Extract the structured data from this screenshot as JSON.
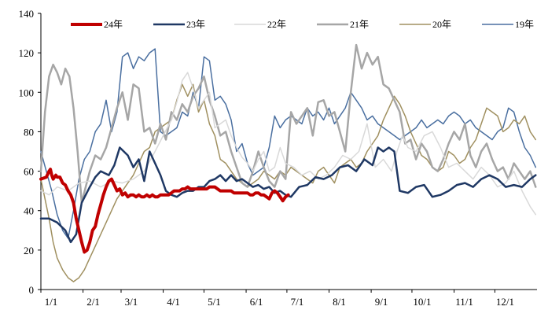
{
  "chart_data": {
    "type": "line",
    "ylim": [
      0,
      140
    ],
    "yticks": [
      "0",
      "20",
      "40",
      "60",
      "80",
      "100",
      "120",
      "140"
    ],
    "xticks": [
      "1/1",
      "2/1",
      "3/1",
      "4/1",
      "5/1",
      "6/1",
      "7/1",
      "8/1",
      "9/1",
      "10/1",
      "11/1",
      "12/1"
    ],
    "legend_placement": "top",
    "grid": false,
    "series": [
      {
        "name": "24年",
        "color": "#c00000",
        "width": 4,
        "x": [
          0,
          4,
          6,
          7,
          8,
          9,
          10,
          11,
          12,
          14,
          16,
          18,
          20,
          22,
          24,
          25,
          26,
          28,
          30,
          32,
          34,
          36,
          38,
          40,
          42,
          44,
          46,
          48,
          50,
          52,
          54,
          56,
          58,
          60,
          62,
          64,
          66,
          68,
          70,
          72,
          74,
          76,
          78,
          80,
          82,
          84,
          86,
          88,
          90,
          92,
          94,
          96,
          98,
          100,
          102,
          104,
          106,
          108,
          110,
          112,
          114,
          116,
          118,
          120,
          122,
          124,
          126,
          128,
          130,
          132,
          134,
          136,
          138,
          140,
          142,
          144,
          146,
          148,
          150,
          152,
          154,
          156,
          158,
          160,
          162,
          164,
          166,
          168,
          170,
          172,
          174,
          176,
          178,
          180,
          182
        ],
        "y": [
          56,
          57,
          60,
          61,
          58,
          56,
          57,
          58,
          57,
          57,
          54,
          53,
          50,
          48,
          44,
          40,
          36,
          30,
          24,
          19,
          20,
          24,
          30,
          32,
          38,
          43,
          48,
          52,
          55,
          56,
          53,
          50,
          51,
          48,
          49,
          47,
          48,
          48,
          47,
          48,
          47,
          47,
          48,
          47,
          48,
          47,
          47,
          48,
          48,
          48,
          48,
          49,
          50,
          50,
          50,
          51,
          51,
          52,
          51,
          51,
          51,
          51,
          51,
          51,
          51,
          52,
          52,
          52,
          51,
          50,
          50,
          50,
          50,
          50,
          49,
          49,
          49,
          49,
          49,
          49,
          48,
          48,
          49,
          49,
          48,
          48,
          47,
          46,
          49,
          50,
          49,
          47,
          45,
          47,
          48
        ]
      },
      {
        "name": "23年",
        "color": "#1f3864",
        "width": 2.5,
        "x": [
          0,
          6,
          12,
          18,
          22,
          26,
          30,
          36,
          40,
          44,
          50,
          54,
          58,
          64,
          68,
          72,
          76,
          80,
          84,
          88,
          92,
          96,
          100,
          104,
          108,
          112,
          116,
          120,
          124,
          128,
          132,
          136,
          140,
          144,
          148,
          152,
          156,
          160,
          164,
          168,
          172,
          176,
          180,
          184,
          190,
          196,
          202,
          208,
          214,
          220,
          226,
          232,
          238,
          244,
          248,
          252,
          256,
          260,
          264,
          270,
          276,
          282,
          288,
          294,
          300,
          306,
          312,
          318,
          324,
          330,
          336,
          342,
          348,
          354,
          360,
          364
        ],
        "y": [
          36,
          36,
          34,
          30,
          24,
          28,
          44,
          52,
          57,
          60,
          58,
          63,
          72,
          68,
          62,
          66,
          55,
          70,
          64,
          58,
          50,
          48,
          47,
          49,
          50,
          50,
          52,
          52,
          55,
          56,
          58,
          55,
          58,
          55,
          56,
          54,
          52,
          53,
          51,
          52,
          49,
          50,
          48,
          47,
          52,
          53,
          57,
          56,
          58,
          62,
          63,
          60,
          66,
          63,
          72,
          70,
          72,
          70,
          50,
          49,
          52,
          53,
          47,
          48,
          50,
          53,
          54,
          52,
          56,
          58,
          56,
          52,
          53,
          52,
          56,
          58
        ]
      },
      {
        "name": "22年",
        "color": "#d9d9d9",
        "width": 1.5,
        "x": [
          0,
          6,
          12,
          20,
          28,
          36,
          44,
          52,
          60,
          68,
          76,
          84,
          90,
          96,
          100,
          104,
          108,
          112,
          116,
          120,
          124,
          128,
          132,
          136,
          140,
          144,
          148,
          152,
          156,
          160,
          164,
          168,
          172,
          176,
          180,
          186,
          192,
          198,
          204,
          210,
          216,
          222,
          228,
          234,
          240,
          246,
          252,
          258,
          262,
          266,
          270,
          276,
          282,
          288,
          294,
          300,
          306,
          312,
          318,
          324,
          330,
          336,
          342,
          348,
          354,
          360,
          364
        ],
        "y": [
          50,
          48,
          52,
          50,
          54,
          55,
          52,
          55,
          54,
          56,
          60,
          70,
          78,
          86,
          95,
          106,
          110,
          102,
          92,
          96,
          100,
          82,
          84,
          86,
          78,
          72,
          67,
          64,
          60,
          66,
          70,
          60,
          62,
          72,
          64,
          62,
          58,
          60,
          56,
          58,
          62,
          68,
          66,
          70,
          84,
          62,
          66,
          60,
          70,
          78,
          72,
          70,
          78,
          80,
          72,
          62,
          64,
          60,
          56,
          62,
          58,
          52,
          54,
          60,
          50,
          42,
          38
        ]
      },
      {
        "name": "21年",
        "color": "#a6a6a6",
        "width": 2.5,
        "x": [
          0,
          3,
          6,
          9,
          12,
          15,
          18,
          21,
          24,
          27,
          30,
          33,
          36,
          40,
          44,
          48,
          52,
          56,
          60,
          64,
          68,
          72,
          76,
          80,
          84,
          88,
          92,
          96,
          100,
          104,
          108,
          112,
          116,
          120,
          124,
          128,
          132,
          136,
          140,
          144,
          148,
          152,
          156,
          160,
          164,
          168,
          172,
          176,
          180,
          184,
          188,
          192,
          196,
          200,
          204,
          208,
          212,
          216,
          220,
          224,
          228,
          232,
          236,
          240,
          244,
          248,
          252,
          256,
          260,
          264,
          268,
          272,
          276,
          280,
          284,
          288,
          292,
          296,
          300,
          304,
          308,
          312,
          316,
          320,
          324,
          328,
          332,
          336,
          340,
          344,
          348,
          352,
          356,
          360,
          364
        ],
        "y": [
          60,
          90,
          108,
          114,
          110,
          104,
          112,
          108,
          92,
          70,
          44,
          52,
          60,
          68,
          66,
          72,
          82,
          92,
          100,
          86,
          104,
          102,
          80,
          82,
          74,
          84,
          76,
          90,
          86,
          94,
          90,
          98,
          102,
          108,
          96,
          88,
          78,
          80,
          70,
          62,
          54,
          52,
          60,
          70,
          62,
          55,
          52,
          60,
          56,
          90,
          84,
          88,
          92,
          78,
          95,
          96,
          88,
          90,
          80,
          70,
          100,
          124,
          112,
          120,
          114,
          118,
          104,
          102,
          96,
          90,
          74,
          76,
          66,
          74,
          70,
          62,
          60,
          66,
          74,
          80,
          76,
          84,
          68,
          62,
          70,
          74,
          66,
          60,
          62,
          56,
          64,
          60,
          56,
          60,
          52
        ]
      },
      {
        "name": "20年",
        "color": "#a09060",
        "width": 1.5,
        "x": [
          0,
          3,
          6,
          9,
          12,
          16,
          20,
          24,
          28,
          32,
          36,
          40,
          44,
          48,
          52,
          56,
          60,
          64,
          68,
          72,
          76,
          80,
          84,
          88,
          92,
          96,
          100,
          104,
          108,
          112,
          116,
          120,
          124,
          128,
          132,
          136,
          140,
          144,
          148,
          152,
          156,
          160,
          164,
          168,
          172,
          176,
          180,
          184,
          188,
          192,
          196,
          200,
          204,
          208,
          212,
          216,
          220,
          224,
          228,
          232,
          236,
          240,
          244,
          248,
          252,
          256,
          260,
          264,
          268,
          272,
          276,
          280,
          284,
          288,
          292,
          296,
          300,
          304,
          308,
          312,
          316,
          320,
          324,
          328,
          332,
          336,
          340,
          344,
          348,
          352,
          356,
          360,
          364
        ],
        "y": [
          56,
          46,
          36,
          24,
          16,
          10,
          6,
          4,
          6,
          10,
          16,
          22,
          28,
          34,
          40,
          46,
          50,
          54,
          58,
          64,
          70,
          72,
          80,
          82,
          84,
          86,
          96,
          104,
          98,
          104,
          90,
          96,
          84,
          78,
          66,
          64,
          60,
          56,
          54,
          52,
          54,
          56,
          60,
          58,
          56,
          60,
          58,
          62,
          60,
          58,
          56,
          54,
          60,
          62,
          58,
          54,
          62,
          64,
          66,
          62,
          64,
          70,
          74,
          78,
          86,
          92,
          98,
          94,
          88,
          80,
          74,
          68,
          66,
          62,
          60,
          62,
          70,
          68,
          64,
          66,
          72,
          76,
          84,
          92,
          90,
          88,
          80,
          82,
          86,
          84,
          88,
          80,
          76
        ]
      },
      {
        "name": "19年",
        "color": "#4a6fa0",
        "width": 1.5,
        "x": [
          0,
          4,
          8,
          12,
          16,
          20,
          24,
          28,
          32,
          36,
          40,
          44,
          48,
          52,
          56,
          60,
          64,
          68,
          72,
          76,
          80,
          84,
          88,
          92,
          96,
          100,
          104,
          108,
          112,
          116,
          120,
          124,
          128,
          132,
          136,
          140,
          144,
          148,
          152,
          156,
          160,
          164,
          168,
          172,
          176,
          180,
          184,
          188,
          192,
          196,
          200,
          204,
          208,
          212,
          216,
          220,
          224,
          228,
          232,
          236,
          240,
          244,
          248,
          252,
          256,
          260,
          264,
          268,
          272,
          276,
          280,
          284,
          288,
          292,
          296,
          300,
          304,
          308,
          312,
          316,
          320,
          324,
          328,
          332,
          336,
          340,
          344,
          348,
          352,
          356,
          360,
          364
        ],
        "y": [
          70,
          60,
          50,
          38,
          30,
          26,
          40,
          56,
          66,
          70,
          80,
          84,
          96,
          80,
          90,
          118,
          120,
          112,
          118,
          116,
          120,
          122,
          80,
          78,
          80,
          82,
          90,
          88,
          100,
          92,
          118,
          116,
          96,
          98,
          94,
          86,
          70,
          74,
          64,
          58,
          60,
          62,
          72,
          88,
          82,
          86,
          88,
          86,
          84,
          92,
          88,
          90,
          86,
          92,
          84,
          88,
          92,
          100,
          96,
          92,
          86,
          88,
          84,
          82,
          80,
          78,
          76,
          78,
          80,
          82,
          86,
          82,
          84,
          86,
          84,
          88,
          90,
          88,
          84,
          86,
          82,
          80,
          78,
          76,
          80,
          82,
          92,
          90,
          80,
          72,
          68,
          62
        ]
      }
    ]
  }
}
